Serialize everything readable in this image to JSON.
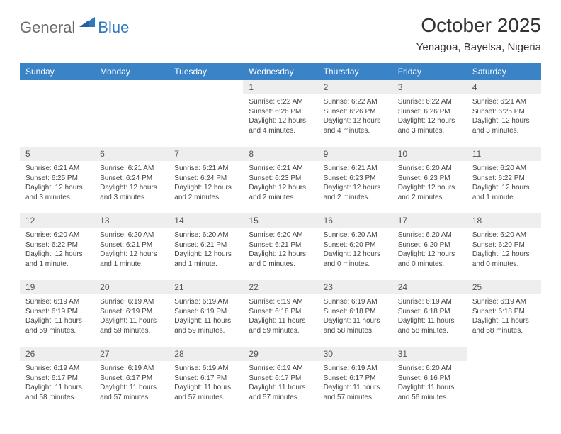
{
  "logo": {
    "word1": "General",
    "word2": "Blue"
  },
  "header": {
    "title": "October 2025",
    "location": "Yenagoa, Bayelsa, Nigeria"
  },
  "calendar": {
    "type": "table",
    "header_bg": "#3b83c7",
    "header_text_color": "#ffffff",
    "daynum_bg": "#eeeeee",
    "rule_color": "#3b83c7",
    "body_font_size": 10,
    "columns": [
      "Sunday",
      "Monday",
      "Tuesday",
      "Wednesday",
      "Thursday",
      "Friday",
      "Saturday"
    ],
    "weeks": [
      [
        {
          "n": "",
          "sr": "",
          "ss": "",
          "dl": ""
        },
        {
          "n": "",
          "sr": "",
          "ss": "",
          "dl": ""
        },
        {
          "n": "",
          "sr": "",
          "ss": "",
          "dl": ""
        },
        {
          "n": "1",
          "sr": "6:22 AM",
          "ss": "6:26 PM",
          "dl": "12 hours and 4 minutes."
        },
        {
          "n": "2",
          "sr": "6:22 AM",
          "ss": "6:26 PM",
          "dl": "12 hours and 4 minutes."
        },
        {
          "n": "3",
          "sr": "6:22 AM",
          "ss": "6:26 PM",
          "dl": "12 hours and 3 minutes."
        },
        {
          "n": "4",
          "sr": "6:21 AM",
          "ss": "6:25 PM",
          "dl": "12 hours and 3 minutes."
        }
      ],
      [
        {
          "n": "5",
          "sr": "6:21 AM",
          "ss": "6:25 PM",
          "dl": "12 hours and 3 minutes."
        },
        {
          "n": "6",
          "sr": "6:21 AM",
          "ss": "6:24 PM",
          "dl": "12 hours and 3 minutes."
        },
        {
          "n": "7",
          "sr": "6:21 AM",
          "ss": "6:24 PM",
          "dl": "12 hours and 2 minutes."
        },
        {
          "n": "8",
          "sr": "6:21 AM",
          "ss": "6:23 PM",
          "dl": "12 hours and 2 minutes."
        },
        {
          "n": "9",
          "sr": "6:21 AM",
          "ss": "6:23 PM",
          "dl": "12 hours and 2 minutes."
        },
        {
          "n": "10",
          "sr": "6:20 AM",
          "ss": "6:23 PM",
          "dl": "12 hours and 2 minutes."
        },
        {
          "n": "11",
          "sr": "6:20 AM",
          "ss": "6:22 PM",
          "dl": "12 hours and 1 minute."
        }
      ],
      [
        {
          "n": "12",
          "sr": "6:20 AM",
          "ss": "6:22 PM",
          "dl": "12 hours and 1 minute."
        },
        {
          "n": "13",
          "sr": "6:20 AM",
          "ss": "6:21 PM",
          "dl": "12 hours and 1 minute."
        },
        {
          "n": "14",
          "sr": "6:20 AM",
          "ss": "6:21 PM",
          "dl": "12 hours and 1 minute."
        },
        {
          "n": "15",
          "sr": "6:20 AM",
          "ss": "6:21 PM",
          "dl": "12 hours and 0 minutes."
        },
        {
          "n": "16",
          "sr": "6:20 AM",
          "ss": "6:20 PM",
          "dl": "12 hours and 0 minutes."
        },
        {
          "n": "17",
          "sr": "6:20 AM",
          "ss": "6:20 PM",
          "dl": "12 hours and 0 minutes."
        },
        {
          "n": "18",
          "sr": "6:20 AM",
          "ss": "6:20 PM",
          "dl": "12 hours and 0 minutes."
        }
      ],
      [
        {
          "n": "19",
          "sr": "6:19 AM",
          "ss": "6:19 PM",
          "dl": "11 hours and 59 minutes."
        },
        {
          "n": "20",
          "sr": "6:19 AM",
          "ss": "6:19 PM",
          "dl": "11 hours and 59 minutes."
        },
        {
          "n": "21",
          "sr": "6:19 AM",
          "ss": "6:19 PM",
          "dl": "11 hours and 59 minutes."
        },
        {
          "n": "22",
          "sr": "6:19 AM",
          "ss": "6:18 PM",
          "dl": "11 hours and 59 minutes."
        },
        {
          "n": "23",
          "sr": "6:19 AM",
          "ss": "6:18 PM",
          "dl": "11 hours and 58 minutes."
        },
        {
          "n": "24",
          "sr": "6:19 AM",
          "ss": "6:18 PM",
          "dl": "11 hours and 58 minutes."
        },
        {
          "n": "25",
          "sr": "6:19 AM",
          "ss": "6:18 PM",
          "dl": "11 hours and 58 minutes."
        }
      ],
      [
        {
          "n": "26",
          "sr": "6:19 AM",
          "ss": "6:17 PM",
          "dl": "11 hours and 58 minutes."
        },
        {
          "n": "27",
          "sr": "6:19 AM",
          "ss": "6:17 PM",
          "dl": "11 hours and 57 minutes."
        },
        {
          "n": "28",
          "sr": "6:19 AM",
          "ss": "6:17 PM",
          "dl": "11 hours and 57 minutes."
        },
        {
          "n": "29",
          "sr": "6:19 AM",
          "ss": "6:17 PM",
          "dl": "11 hours and 57 minutes."
        },
        {
          "n": "30",
          "sr": "6:19 AM",
          "ss": "6:17 PM",
          "dl": "11 hours and 57 minutes."
        },
        {
          "n": "31",
          "sr": "6:20 AM",
          "ss": "6:16 PM",
          "dl": "11 hours and 56 minutes."
        },
        {
          "n": "",
          "sr": "",
          "ss": "",
          "dl": ""
        }
      ]
    ],
    "labels": {
      "sunrise": "Sunrise:",
      "sunset": "Sunset:",
      "daylight": "Daylight:"
    }
  }
}
